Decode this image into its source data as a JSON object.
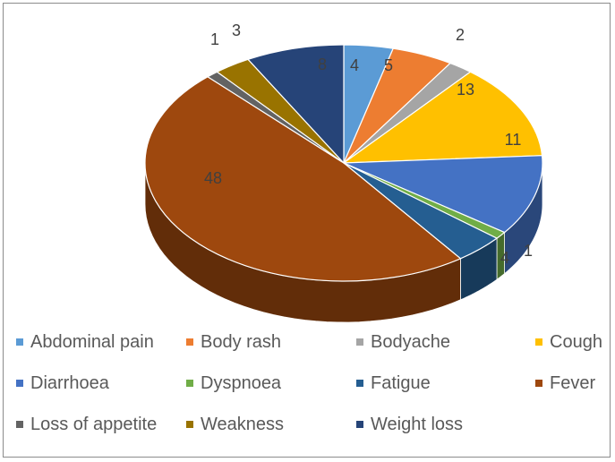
{
  "chart_data": {
    "type": "pie",
    "title": "",
    "three_d": true,
    "legend_position": "bottom",
    "categories": [
      "Abdominal pain",
      "Body rash",
      "Bodyache",
      "Cough",
      "Diarrhoea",
      "Dyspnoea",
      "Fatigue",
      "Fever",
      "Loss of appetite",
      "Weakness",
      "Weight loss"
    ],
    "values": [
      4,
      5,
      2,
      13,
      11,
      1,
      4,
      48,
      1,
      3,
      8
    ],
    "colors": [
      "#5B9BD5",
      "#ED7D31",
      "#A5A5A5",
      "#FFC000",
      "#4472C4",
      "#70AD47",
      "#255E91",
      "#9E480E",
      "#636363",
      "#997300",
      "#264478"
    ],
    "data_labels": [
      "4",
      "5",
      "2",
      "13",
      "11",
      "1",
      "4",
      "48",
      "1",
      "3",
      "8"
    ]
  }
}
